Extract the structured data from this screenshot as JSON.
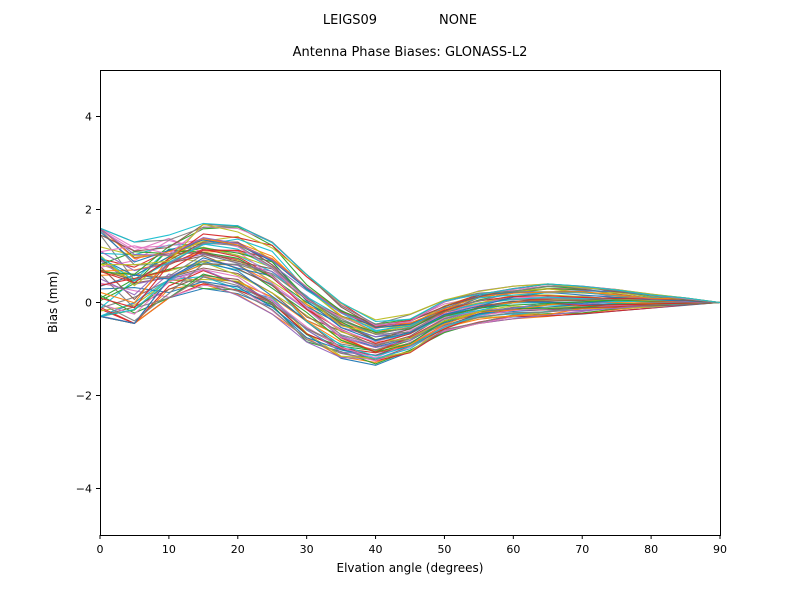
{
  "chart_data": {
    "type": "line",
    "suptitle_left": "LEIGS09",
    "suptitle_right": "NONE",
    "suptitle": "LEIGS09         NONE",
    "title": "Antenna Phase Biases: GLONASS-L2",
    "xlabel": "Elvation angle (degrees)",
    "ylabel": "Bias (mm)",
    "xlim": [
      0,
      90
    ],
    "ylim": [
      -5,
      5
    ],
    "xticks": [
      0,
      10,
      20,
      30,
      40,
      50,
      60,
      70,
      80,
      90
    ],
    "yticks": [
      -4,
      -2,
      0,
      2,
      4
    ],
    "grid": false,
    "legend": null,
    "ensemble": {
      "description": "Dense bundle of ~60 overlapping antenna phase bias curves, one per antenna/calibration, converging to 0 mm at 90 degrees elevation",
      "x": [
        0,
        5,
        10,
        15,
        20,
        25,
        30,
        35,
        40,
        45,
        50,
        55,
        60,
        65,
        70,
        75,
        80,
        85,
        90
      ],
      "upper": [
        1.6,
        1.3,
        1.45,
        1.7,
        1.65,
        1.3,
        0.6,
        0.0,
        -0.35,
        -0.25,
        0.05,
        0.25,
        0.35,
        0.4,
        0.35,
        0.28,
        0.18,
        0.1,
        0.0
      ],
      "lower": [
        -0.3,
        -0.45,
        0.1,
        0.3,
        0.15,
        -0.25,
        -0.85,
        -1.2,
        -1.35,
        -1.1,
        -0.65,
        -0.45,
        -0.35,
        -0.3,
        -0.25,
        -0.18,
        -0.12,
        -0.06,
        0.0
      ],
      "mean": [
        0.6,
        0.4,
        0.75,
        1.0,
        0.9,
        0.5,
        -0.15,
        -0.6,
        -0.85,
        -0.65,
        -0.3,
        -0.1,
        0.0,
        0.05,
        0.05,
        0.05,
        0.03,
        0.02,
        0.0
      ],
      "line_count": 60
    },
    "palette": [
      "#1f77b4",
      "#ff7f0e",
      "#2ca02c",
      "#d62728",
      "#9467bd",
      "#8c564b",
      "#e377c2",
      "#7f7f7f",
      "#bcbd22",
      "#17becf"
    ]
  }
}
